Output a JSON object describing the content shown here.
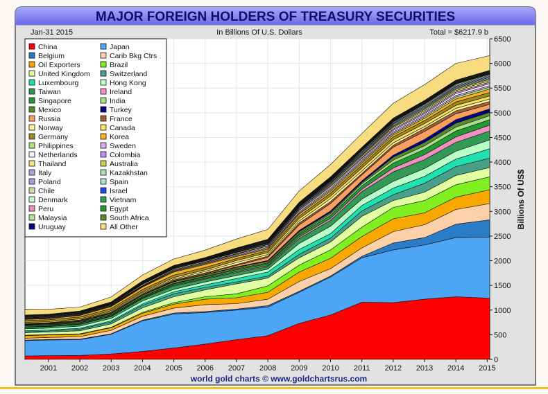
{
  "header": {
    "title": "MAJOR FOREIGN HOLDERS OF TREASURY SECURITIES",
    "date": "Jan-31  2015",
    "units": "In Billions Of U.S. Dollars",
    "total": "Total = $6217.9 b"
  },
  "footer": "world gold charts © www.goldchartsrus.com",
  "chart_data": {
    "type": "area",
    "stacked": true,
    "ylabel": "Billions Of US$",
    "ylim": [
      0,
      6500
    ],
    "yticks": [
      "0",
      "500",
      "1000",
      "1500",
      "2000",
      "2500",
      "3000",
      "3500",
      "4000",
      "4500",
      "5000",
      "5500",
      "6000",
      "6500"
    ],
    "xlim": [
      2000.25,
      2015.08
    ],
    "xticks": [
      "2001",
      "2002",
      "2003",
      "2004",
      "2005",
      "2006",
      "2007",
      "2008",
      "2009",
      "2010",
      "2011",
      "2012",
      "2013",
      "2014",
      "2015"
    ],
    "grid": true,
    "legend_position": "top-left",
    "x": [
      2000.25,
      2001,
      2002,
      2003,
      2004,
      2005,
      2006,
      2007,
      2008,
      2009,
      2010,
      2011,
      2012,
      2013,
      2014,
      2015.08
    ],
    "series": [
      {
        "name": "China",
        "color": "#ff0000",
        "values": [
          70,
          75,
          80,
          110,
          160,
          230,
          310,
          400,
          480,
          730,
          900,
          1160,
          1150,
          1220,
          1270,
          1240
        ]
      },
      {
        "name": "Japan",
        "color": "#4da6f5",
        "values": [
          310,
          320,
          320,
          400,
          620,
          690,
          640,
          600,
          580,
          630,
          770,
          900,
          1070,
          1100,
          1200,
          1240
        ]
      },
      {
        "name": "Belgium",
        "color": "#2a7cc7",
        "values": [
          10,
          10,
          10,
          10,
          15,
          20,
          20,
          20,
          30,
          20,
          20,
          30,
          140,
          150,
          270,
          350
        ]
      },
      {
        "name": "Carib Bkg Ctrs",
        "color": "#fcd0a8",
        "values": [
          40,
          40,
          50,
          70,
          80,
          100,
          140,
          110,
          130,
          200,
          150,
          170,
          230,
          260,
          300,
          330
        ]
      },
      {
        "name": "Oil Exporters",
        "color": "#f8a800",
        "values": [
          50,
          50,
          50,
          50,
          60,
          80,
          110,
          120,
          140,
          190,
          210,
          230,
          260,
          240,
          250,
          280
        ]
      },
      {
        "name": "Brazil",
        "color": "#80f020",
        "values": [
          10,
          10,
          10,
          10,
          20,
          30,
          50,
          80,
          130,
          140,
          170,
          190,
          230,
          250,
          250,
          260
        ]
      },
      {
        "name": "United Kingdom",
        "color": "#e0ffa0",
        "values": [
          50,
          50,
          60,
          70,
          90,
          120,
          140,
          200,
          160,
          150,
          160,
          220,
          140,
          170,
          190,
          190
        ]
      },
      {
        "name": "Switzerland",
        "color": "#48a088",
        "values": [
          20,
          20,
          30,
          40,
          50,
          60,
          50,
          40,
          40,
          70,
          80,
          110,
          120,
          180,
          180,
          190
        ]
      },
      {
        "name": "Luxembourg",
        "color": "#20e0b0",
        "values": [
          20,
          20,
          20,
          20,
          30,
          40,
          50,
          70,
          80,
          100,
          90,
          110,
          130,
          140,
          150,
          190
        ]
      },
      {
        "name": "Hong Kong",
        "color": "#b8ffc8",
        "values": [
          40,
          40,
          45,
          50,
          60,
          50,
          60,
          60,
          60,
          120,
          150,
          130,
          140,
          160,
          160,
          180
        ]
      },
      {
        "name": "Taiwan",
        "color": "#339955",
        "values": [
          30,
          30,
          35,
          40,
          50,
          70,
          60,
          60,
          50,
          100,
          120,
          150,
          190,
          180,
          180,
          180
        ]
      },
      {
        "name": "Ireland",
        "color": "#f090c0",
        "values": [
          10,
          10,
          10,
          10,
          10,
          15,
          15,
          20,
          20,
          30,
          40,
          50,
          80,
          100,
          110,
          120
        ]
      },
      {
        "name": "Singapore",
        "color": "#229933",
        "values": [
          20,
          20,
          20,
          20,
          20,
          25,
          30,
          40,
          40,
          50,
          60,
          70,
          100,
          110,
          120,
          110
        ]
      },
      {
        "name": "India",
        "color": "#a8e088",
        "values": [
          5,
          5,
          5,
          5,
          5,
          10,
          10,
          15,
          15,
          20,
          30,
          40,
          60,
          70,
          80,
          80
        ]
      },
      {
        "name": "Mexico",
        "color": "#5a8a30",
        "values": [
          15,
          15,
          20,
          25,
          30,
          35,
          30,
          30,
          35,
          40,
          30,
          30,
          60,
          70,
          80,
          70
        ]
      },
      {
        "name": "Turkey",
        "color": "#000080",
        "values": [
          5,
          5,
          5,
          5,
          5,
          5,
          5,
          10,
          15,
          25,
          30,
          30,
          40,
          60,
          70,
          70
        ]
      },
      {
        "name": "Russia",
        "color": "#f8a060",
        "values": [
          5,
          5,
          5,
          5,
          5,
          10,
          15,
          30,
          60,
          110,
          150,
          120,
          160,
          160,
          120,
          90
        ]
      },
      {
        "name": "France",
        "color": "#a06030",
        "values": [
          10,
          10,
          15,
          15,
          20,
          20,
          20,
          20,
          30,
          40,
          40,
          30,
          40,
          60,
          60,
          60
        ]
      },
      {
        "name": "Norway",
        "color": "#fff0a0",
        "values": [
          10,
          10,
          10,
          15,
          20,
          20,
          30,
          40,
          30,
          40,
          60,
          50,
          50,
          40,
          50,
          50
        ]
      },
      {
        "name": "Canada",
        "color": "#f8e060",
        "values": [
          20,
          20,
          20,
          20,
          20,
          30,
          30,
          40,
          40,
          50,
          50,
          60,
          60,
          60,
          60,
          60
        ]
      },
      {
        "name": "Germany",
        "color": "#a08820",
        "values": [
          40,
          40,
          40,
          40,
          45,
          50,
          50,
          40,
          40,
          50,
          60,
          60,
          60,
          60,
          70,
          70
        ]
      },
      {
        "name": "Korea",
        "color": "#f8b020",
        "values": [
          20,
          20,
          30,
          40,
          50,
          60,
          60,
          40,
          30,
          40,
          40,
          40,
          40,
          50,
          60,
          70
        ]
      },
      {
        "name": "Philippines",
        "color": "#b0e080",
        "values": [
          10,
          10,
          10,
          10,
          10,
          15,
          15,
          15,
          20,
          20,
          30,
          30,
          30,
          30,
          40,
          40
        ]
      },
      {
        "name": "Sweden",
        "color": "#e0a8f0",
        "values": [
          10,
          10,
          10,
          10,
          10,
          10,
          15,
          20,
          20,
          20,
          30,
          30,
          30,
          30,
          30,
          30
        ]
      },
      {
        "name": "Netherlands",
        "color": "#f0f4fa",
        "values": [
          10,
          10,
          10,
          10,
          10,
          15,
          15,
          15,
          20,
          30,
          30,
          30,
          30,
          30,
          40,
          40
        ]
      },
      {
        "name": "Colombia",
        "color": "#c090f0",
        "values": [
          5,
          5,
          5,
          5,
          5,
          5,
          5,
          10,
          10,
          20,
          20,
          20,
          30,
          30,
          30,
          30
        ]
      },
      {
        "name": "Thailand",
        "color": "#f8dc80",
        "values": [
          10,
          10,
          10,
          10,
          20,
          20,
          20,
          20,
          20,
          20,
          20,
          30,
          30,
          30,
          30,
          30
        ]
      },
      {
        "name": "Australia",
        "color": "#c0d050",
        "values": [
          5,
          5,
          5,
          5,
          5,
          5,
          5,
          10,
          10,
          10,
          20,
          20,
          20,
          30,
          30,
          30
        ]
      },
      {
        "name": "Italy",
        "color": "#a8a8e0",
        "values": [
          10,
          10,
          10,
          10,
          10,
          10,
          10,
          10,
          15,
          20,
          20,
          20,
          20,
          20,
          20,
          20
        ]
      },
      {
        "name": "Kazakhstan",
        "color": "#a8e0b0",
        "values": [
          0,
          0,
          0,
          5,
          5,
          5,
          5,
          10,
          10,
          10,
          10,
          20,
          20,
          20,
          20,
          20
        ]
      },
      {
        "name": "Poland",
        "color": "#a0a0e0",
        "values": [
          5,
          5,
          5,
          5,
          10,
          10,
          10,
          10,
          10,
          10,
          20,
          20,
          20,
          20,
          20,
          20
        ]
      },
      {
        "name": "Spain",
        "color": "#a8e0d0",
        "values": [
          5,
          5,
          5,
          5,
          5,
          5,
          5,
          5,
          5,
          10,
          10,
          10,
          10,
          20,
          20,
          20
        ]
      },
      {
        "name": "Chile",
        "color": "#d8d8a8",
        "values": [
          5,
          5,
          5,
          5,
          5,
          5,
          5,
          5,
          10,
          10,
          10,
          20,
          20,
          20,
          20,
          20
        ]
      },
      {
        "name": "Israel",
        "color": "#1848e8",
        "values": [
          5,
          5,
          5,
          5,
          5,
          5,
          5,
          10,
          10,
          10,
          10,
          10,
          10,
          10,
          10,
          10
        ]
      },
      {
        "name": "Denmark",
        "color": "#c0ffd0",
        "values": [
          5,
          5,
          5,
          5,
          5,
          5,
          5,
          10,
          10,
          10,
          10,
          10,
          10,
          10,
          10,
          10
        ]
      },
      {
        "name": "Vietnam",
        "color": "#339955",
        "values": [
          0,
          0,
          0,
          0,
          0,
          0,
          0,
          5,
          5,
          10,
          10,
          10,
          10,
          10,
          10,
          10
        ]
      },
      {
        "name": "Peru",
        "color": "#f090c0",
        "values": [
          0,
          0,
          0,
          0,
          5,
          5,
          5,
          5,
          5,
          5,
          10,
          10,
          10,
          10,
          10,
          10
        ]
      },
      {
        "name": "Egypt",
        "color": "#229933",
        "values": [
          0,
          0,
          0,
          0,
          5,
          5,
          5,
          5,
          5,
          5,
          10,
          10,
          10,
          10,
          10,
          10
        ]
      },
      {
        "name": "Malaysia",
        "color": "#b0e890",
        "values": [
          5,
          5,
          5,
          5,
          5,
          5,
          5,
          5,
          5,
          10,
          10,
          10,
          10,
          10,
          10,
          10
        ]
      },
      {
        "name": "South Africa",
        "color": "#5a8a30",
        "values": [
          0,
          0,
          0,
          0,
          5,
          5,
          5,
          5,
          5,
          5,
          5,
          5,
          10,
          10,
          10,
          10
        ]
      },
      {
        "name": "Uruguay",
        "color": "#000080",
        "values": [
          0,
          0,
          0,
          0,
          0,
          0,
          0,
          0,
          5,
          5,
          5,
          5,
          10,
          10,
          10,
          10
        ]
      },
      {
        "name": "All Other",
        "color": "#f8dc80",
        "values": [
          120,
          100,
          80,
          100,
          120,
          130,
          150,
          180,
          200,
          230,
          250,
          280,
          300,
          320,
          340,
          300
        ]
      }
    ]
  }
}
